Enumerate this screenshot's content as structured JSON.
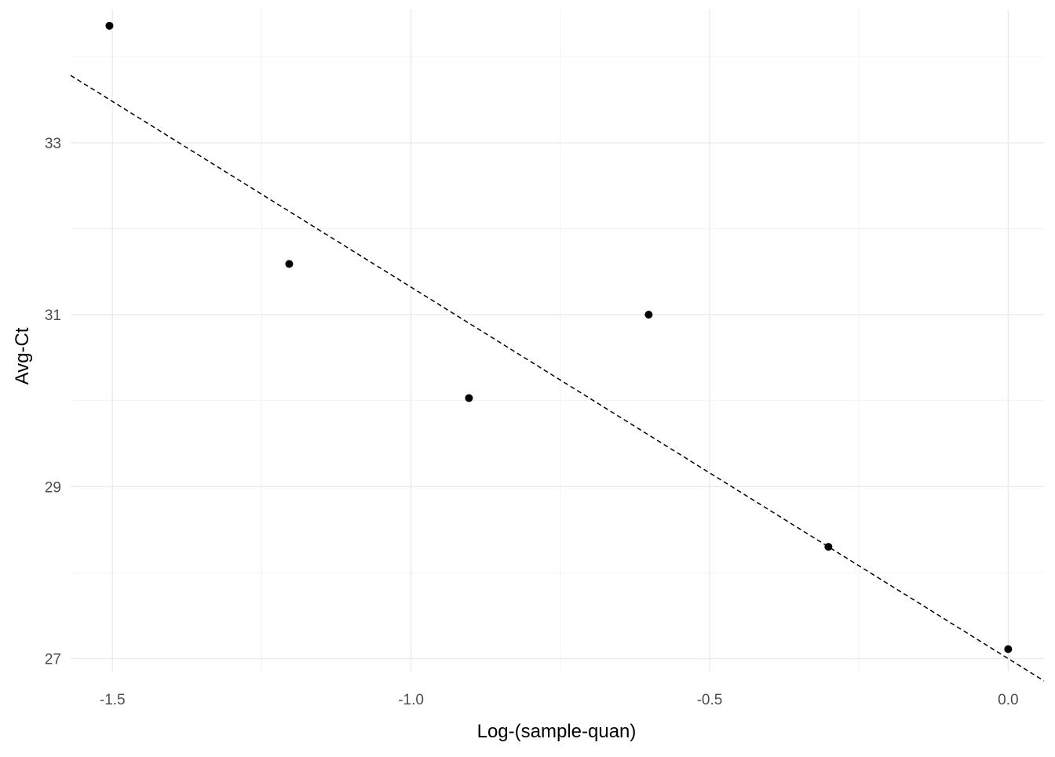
{
  "chart_data": {
    "type": "scatter",
    "title": "",
    "xlabel": "Log-(sample-quan)",
    "ylabel": "Avg-Ct",
    "xlim": [
      -1.57,
      0.06
    ],
    "ylim": [
      26.85,
      34.55
    ],
    "x_ticks": [
      -1.5,
      -1.0,
      -0.5,
      0.0
    ],
    "x_tick_labels": [
      "-1.5",
      "-1.0",
      "-0.5",
      "0.0"
    ],
    "y_ticks": [
      27,
      29,
      31,
      33
    ],
    "y_tick_labels": [
      "27",
      "29",
      "31",
      "33"
    ],
    "grid": true,
    "legend": "none",
    "points": [
      {
        "x": -1.505,
        "y": 34.36
      },
      {
        "x": -1.204,
        "y": 31.59
      },
      {
        "x": -0.903,
        "y": 30.03
      },
      {
        "x": -0.602,
        "y": 31.0
      },
      {
        "x": -0.301,
        "y": 28.3
      },
      {
        "x": 0.0,
        "y": 27.11
      }
    ],
    "fit_line": {
      "style": "dashed",
      "intercept": 27.0,
      "slope": -4.32
    },
    "colors": {
      "points": "#000000",
      "fit_line": "#000000",
      "grid_major": "#ebebeb",
      "grid_minor": "#f2f2f2"
    }
  }
}
